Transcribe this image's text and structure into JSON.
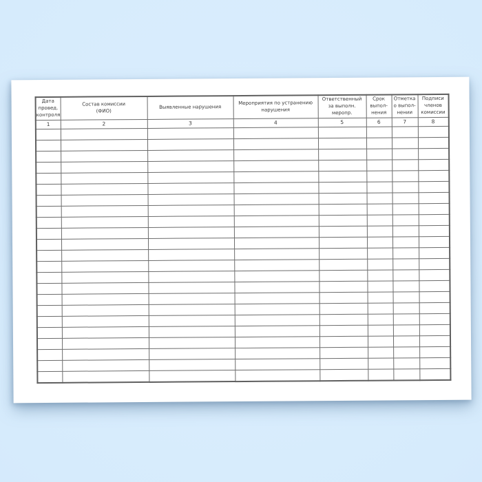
{
  "document": {
    "kind": "blank-inspection-log-form",
    "language": "ru",
    "background_color": "#d6ebfc",
    "background_color_light": "#dbeefe",
    "background_color_dark": "#cfe4f9",
    "sheet_color": "#ffffff",
    "grid_line_color": "#6b6b6b",
    "grid_outer_line_color": "#5f5f5f",
    "text_color": "#3a3a3a"
  },
  "table": {
    "columns": [
      {
        "number": "1",
        "label": "Дата\nпровед.\nконтроля"
      },
      {
        "number": "2",
        "label": "Состав комиссии\n(ФИО)"
      },
      {
        "number": "3",
        "label": "Выявленные нарушения"
      },
      {
        "number": "4",
        "label": "Мероприятия по устранению\nнарушения"
      },
      {
        "number": "5",
        "label": "Ответственный\nза выполн.\nмеропр."
      },
      {
        "number": "6",
        "label": "Срок\nвыпол-\nнения"
      },
      {
        "number": "7",
        "label": "Отметка\nо выпол-\nнении"
      },
      {
        "number": "8",
        "label": "Подписи\nчленов\nкомиссии"
      }
    ],
    "empty_row_count": 23,
    "cell_values": []
  }
}
